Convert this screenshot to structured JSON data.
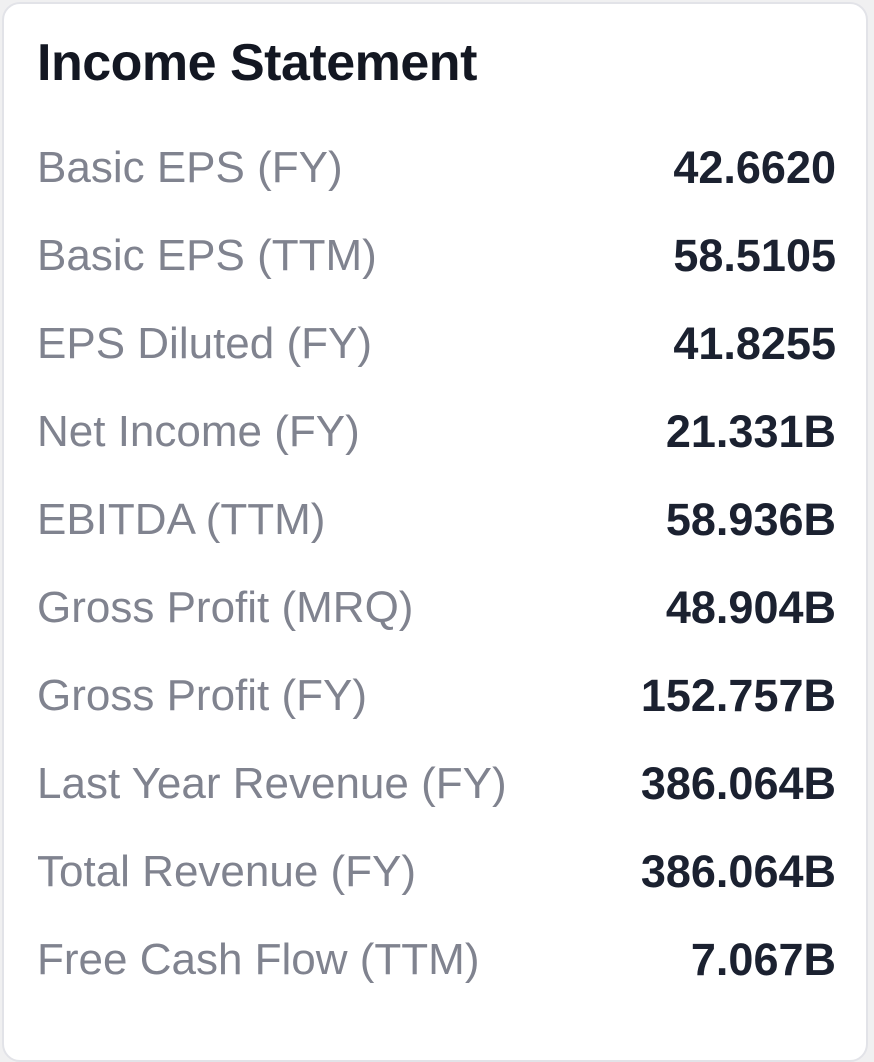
{
  "card": {
    "title": "Income Statement",
    "rows": [
      {
        "label": "Basic EPS (FY)",
        "value": "42.6620"
      },
      {
        "label": "Basic EPS (TTM)",
        "value": "58.5105"
      },
      {
        "label": "EPS Diluted (FY)",
        "value": "41.8255"
      },
      {
        "label": "Net Income (FY)",
        "value": "21.331B"
      },
      {
        "label": "EBITDA (TTM)",
        "value": "58.936B"
      },
      {
        "label": "Gross Profit (MRQ)",
        "value": "48.904B"
      },
      {
        "label": "Gross Profit (FY)",
        "value": "152.757B"
      },
      {
        "label": "Last Year Revenue (FY)",
        "value": "386.064B"
      },
      {
        "label": "Total Revenue (FY)",
        "value": "386.064B"
      },
      {
        "label": "Free Cash Flow (TTM)",
        "value": "7.067B"
      }
    ],
    "colors": {
      "page_bg": "#f0f0f1",
      "card_bg": "#ffffff",
      "border": "#e2e3e8",
      "title": "#131722",
      "label": "#80838f",
      "value": "#1b2130"
    }
  }
}
